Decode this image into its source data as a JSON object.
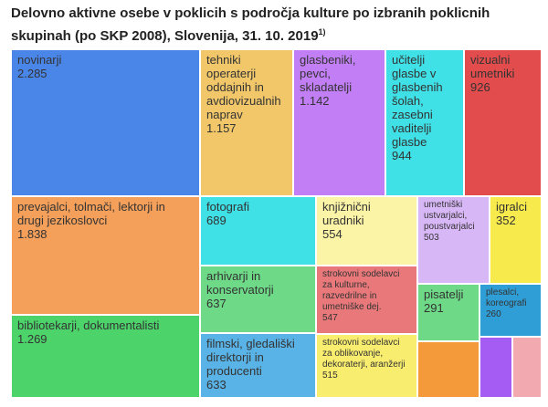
{
  "title": "Delovno aktivne osebe v poklicih s področja kulture po izbranih poklicnih skupinah (po SKP 2008), Slovenija, 31. 10. 2019",
  "footnote_mark": "1)",
  "chart_data": {
    "type": "treemap",
    "title": "Delovno aktivne osebe v poklicih s področja kulture po izbranih poklicnih skupinah (po SKP 2008), Slovenija, 31. 10. 2019",
    "items": [
      {
        "name": "novinarji",
        "value": 2285,
        "label": "novinarji",
        "value_label": "2.285",
        "color": "#4a86e8"
      },
      {
        "name": "tehniki operaterji oddajnih in avdiovizualnih naprav",
        "value": 1157,
        "label": "tehniki\noperaterji\noddajnih in\navdiovizualnih\nnaprav",
        "value_label": "1.157",
        "color": "#f1c76a"
      },
      {
        "name": "glasbeniki, pevci, skladatelji",
        "value": 1142,
        "label": "glasbeniki,\npevci,\nskladatelji",
        "value_label": "1.142",
        "color": "#c27ef5"
      },
      {
        "name": "učitelji glasbe v glasbenih šolah, zasebni vaditelji glasbe",
        "value": 944,
        "label": "učitelji\nglasbe v\nglasbenih\nšolah,\nzasebni\nvaditelji\nglasbe",
        "value_label": "944",
        "color": "#3fe0e6"
      },
      {
        "name": "vizualni umetniki",
        "value": 926,
        "label": "vizualni\numetniki",
        "value_label": "926",
        "color": "#e24c4c"
      },
      {
        "name": "prevajalci, tolmači, lektorji in drugi jezikoslovci",
        "value": 1838,
        "label": "prevajalci, tolmači, lektorji in\ndrugi jezikoslovci",
        "value_label": "1.838",
        "color": "#f5a05a"
      },
      {
        "name": "bibliotekarji, dokumentalisti",
        "value": 1269,
        "label": "bibliotekarji, dokumentalisti",
        "value_label": "1.269",
        "color": "#4cd36a"
      },
      {
        "name": "fotografi",
        "value": 689,
        "label": "fotografi",
        "value_label": "689",
        "color": "#3fe0e6"
      },
      {
        "name": "arhivarji in konservatorji",
        "value": 637,
        "label": "arhivarji in\nkonservatorji",
        "value_label": "637",
        "color": "#6ed987"
      },
      {
        "name": "filmski, gledališki direktorji in producenti",
        "value": 633,
        "label": "filmski, gledališki\ndirektorji in\nproducenti",
        "value_label": "633",
        "color": "#5ab3e6"
      },
      {
        "name": "knjižnični uradniki",
        "value": 554,
        "label": "knjižnični\nuradniki",
        "value_label": "554",
        "color": "#fbf3a6"
      },
      {
        "name": "strokovni sodelavci za kulturne, razvedrilne in umetniške dej.",
        "value": 547,
        "label": "strokovni sodelavci\nza kulturne,\nrazvedrilne in\numetniške dej.",
        "value_label": "547",
        "color": "#e8787a"
      },
      {
        "name": "strokovni sodelavci za oblikovanje, dekoraterji, aranžerji",
        "value": 515,
        "label": "strokovni sodelavci\nza oblikovanje,\ndekoraterji, aranžerji",
        "value_label": "515",
        "color": "#f8ed6e"
      },
      {
        "name": "umetniški ustvarjalci, poustvarjalci",
        "value": 503,
        "label": "umetniški\nustvarjalci,\npoustvarjalci",
        "value_label": "503",
        "color": "#d8b7f7"
      },
      {
        "name": "igralci",
        "value": 352,
        "label": "igralci",
        "value_label": "352",
        "color": "#f7ea4c"
      },
      {
        "name": "pisatelji",
        "value": 291,
        "label": "pisatelji",
        "value_label": "291",
        "color": "#6ed987"
      },
      {
        "name": "plesalci, koreografi",
        "value": 260,
        "label": "plesalci,\nkoreografi",
        "value_label": "260",
        "color": "#2f9ed6"
      },
      {
        "name": "unlabeled orange",
        "value": 0,
        "label": "",
        "value_label": "",
        "color": "#f59a3b"
      },
      {
        "name": "unlabeled purple",
        "value": 0,
        "label": "",
        "value_label": "",
        "color": "#a55cf2"
      },
      {
        "name": "unlabeled pink",
        "value": 0,
        "label": "",
        "value_label": "",
        "color": "#f2aab0"
      }
    ]
  }
}
